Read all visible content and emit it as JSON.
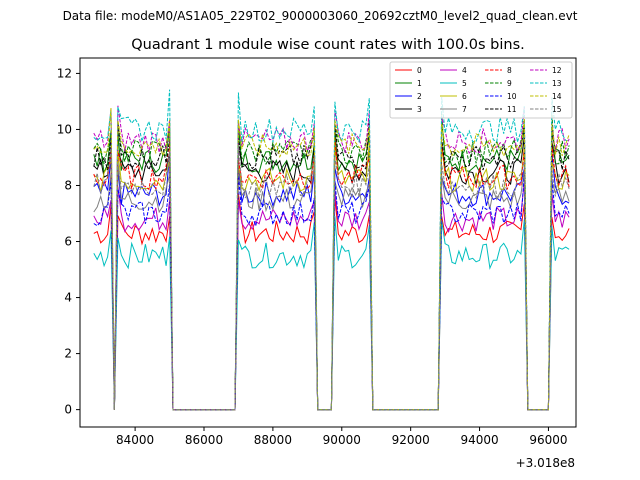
{
  "header": {
    "data_file": "Data file: modeM0/AS1A05_229T02_9000003060_20692cztM0_level2_quad_clean.evt"
  },
  "chart_data": {
    "type": "line",
    "title": "Quadrant 1 module wise count rates with 100.0s bins.",
    "xlabel": "",
    "ylabel": "",
    "x_offset_label": "+3.018e8",
    "xlim": [
      82400,
      96800
    ],
    "ylim": [
      -0.62,
      12.55
    ],
    "x_ticks": [
      84000,
      86000,
      88000,
      90000,
      92000,
      94000,
      96000
    ],
    "x_tick_labels": [
      "84000",
      "86000",
      "88000",
      "90000",
      "92000",
      "94000",
      "96000"
    ],
    "y_ticks": [
      0,
      2,
      4,
      6,
      8,
      10,
      12
    ],
    "y_tick_labels": [
      "0",
      "2",
      "4",
      "6",
      "8",
      "10",
      "12"
    ],
    "grid": false,
    "legend_position": "top-right",
    "bin_seconds": 100,
    "segments": [
      {
        "start": 82800,
        "end": 83300
      },
      {
        "start": 83300,
        "end": 83400,
        "gap": true
      },
      {
        "start": 83500,
        "end": 85000
      },
      {
        "start": 85000,
        "end": 86900,
        "gap": true
      },
      {
        "start": 86900,
        "end": 89200
      },
      {
        "start": 89200,
        "end": 89700,
        "gap": true
      },
      {
        "start": 89700,
        "end": 90800
      },
      {
        "start": 90800,
        "end": 92800,
        "gap": true
      },
      {
        "start": 92800,
        "end": 95300
      },
      {
        "start": 95300,
        "end": 96000,
        "gap": true
      },
      {
        "start": 96000,
        "end": 96600
      }
    ],
    "series": [
      {
        "name": "0",
        "level": 6.3,
        "color": "#ff0000",
        "dash": "solid"
      },
      {
        "name": "1",
        "level": 8.9,
        "color": "#008000",
        "dash": "solid"
      },
      {
        "name": "2",
        "level": 7.7,
        "color": "#0000ff",
        "dash": "solid"
      },
      {
        "name": "3",
        "level": 8.5,
        "color": "#000000",
        "dash": "solid"
      },
      {
        "name": "4",
        "level": 6.8,
        "color": "#bf00bf",
        "dash": "solid"
      },
      {
        "name": "5",
        "level": 5.5,
        "color": "#00bfbf",
        "dash": "solid"
      },
      {
        "name": "6",
        "level": 8.2,
        "color": "#bfbf00",
        "dash": "solid"
      },
      {
        "name": "7",
        "level": 7.5,
        "color": "#808080",
        "dash": "solid"
      },
      {
        "name": "8",
        "level": 8.3,
        "color": "#ff0000",
        "dash": "dashed"
      },
      {
        "name": "9",
        "level": 9.2,
        "color": "#008000",
        "dash": "dashed"
      },
      {
        "name": "10",
        "level": 7.0,
        "color": "#0000ff",
        "dash": "dashed"
      },
      {
        "name": "11",
        "level": 9.0,
        "color": "#000000",
        "dash": "dashed"
      },
      {
        "name": "12",
        "level": 9.6,
        "color": "#bf00bf",
        "dash": "dashed"
      },
      {
        "name": "13",
        "level": 10.0,
        "color": "#00bfbf",
        "dash": "dashed"
      },
      {
        "name": "14",
        "level": 9.4,
        "color": "#bfbf00",
        "dash": "dashed"
      },
      {
        "name": "15",
        "level": 8.0,
        "color": "#808080",
        "dash": "dashed"
      }
    ]
  }
}
